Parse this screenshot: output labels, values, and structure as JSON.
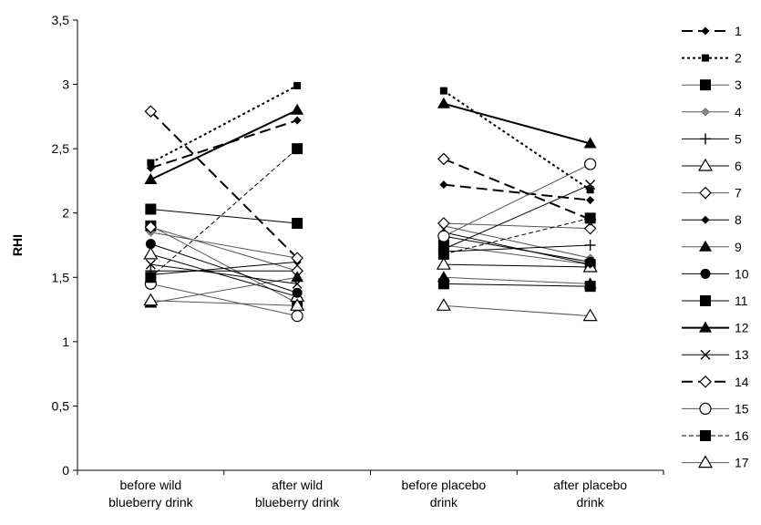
{
  "chart_data": {
    "type": "line",
    "title": "",
    "xlabel": "",
    "ylabel": "RHI",
    "ylim": [
      0,
      3.5
    ],
    "yticks": [
      "0",
      "0,5",
      "1",
      "1,5",
      "2",
      "2,5",
      "3",
      "3,5"
    ],
    "grid": false,
    "legend_position": "right",
    "categories": [
      [
        "before wild",
        "blueberry drink"
      ],
      [
        "after wild",
        "blueberry drink"
      ],
      [
        "before placebo",
        "drink"
      ],
      [
        "after placebo",
        "drink"
      ]
    ],
    "series": [
      {
        "name": "1",
        "values": [
          2.35,
          2.72,
          2.22,
          2.1
        ],
        "dash": "long",
        "marker": "diamond-filled",
        "width": 2
      },
      {
        "name": "2",
        "values": [
          2.39,
          2.99,
          2.95,
          2.18
        ],
        "dash": "dot",
        "marker": "square-filled-small",
        "width": 2
      },
      {
        "name": "3",
        "values": [
          1.9,
          1.3,
          1.75,
          1.6
        ],
        "dash": "solid",
        "marker": "square-filled",
        "width": 1
      },
      {
        "name": "4",
        "values": [
          1.85,
          1.65,
          1.9,
          1.65
        ],
        "dash": "solid",
        "marker": "diamond-grey",
        "width": 1
      },
      {
        "name": "5",
        "values": [
          1.55,
          1.55,
          1.7,
          1.75
        ],
        "dash": "solid",
        "marker": "plus",
        "width": 1
      },
      {
        "name": "6",
        "values": [
          1.68,
          1.35,
          1.6,
          1.58
        ],
        "dash": "solid",
        "marker": "triangle-open",
        "width": 1
      },
      {
        "name": "7",
        "values": [
          1.89,
          1.55,
          1.92,
          1.88
        ],
        "dash": "solid",
        "marker": "diamond-open",
        "width": 1
      },
      {
        "name": "8",
        "values": [
          1.52,
          1.62,
          1.85,
          1.6
        ],
        "dash": "solid",
        "marker": "diamond-filled",
        "width": 1
      },
      {
        "name": "9",
        "values": [
          1.3,
          1.5,
          1.5,
          1.45
        ],
        "dash": "solid",
        "marker": "triangle-filled",
        "width": 1
      },
      {
        "name": "10",
        "values": [
          1.76,
          1.38,
          1.82,
          1.62
        ],
        "dash": "solid",
        "marker": "circle-filled",
        "width": 1
      },
      {
        "name": "11",
        "values": [
          2.03,
          1.92,
          1.45,
          1.43
        ],
        "dash": "solid",
        "marker": "square-filled",
        "width": 1
      },
      {
        "name": "12",
        "values": [
          2.26,
          2.8,
          2.85,
          2.54
        ],
        "dash": "solid",
        "marker": "triangle-filled",
        "width": 2
      },
      {
        "name": "13",
        "values": [
          1.6,
          1.45,
          1.72,
          2.22
        ],
        "dash": "solid",
        "marker": "x",
        "width": 1
      },
      {
        "name": "14",
        "values": [
          2.79,
          1.65,
          2.42,
          1.95
        ],
        "dash": "long",
        "marker": "diamond-open",
        "width": 2
      },
      {
        "name": "15",
        "values": [
          1.45,
          1.2,
          1.82,
          2.38
        ],
        "dash": "solid",
        "marker": "circle-open",
        "width": 1
      },
      {
        "name": "16",
        "values": [
          1.5,
          2.5,
          1.68,
          1.96
        ],
        "dash": "dash",
        "marker": "square-filled",
        "width": 1
      },
      {
        "name": "17",
        "values": [
          1.32,
          1.28,
          1.28,
          1.2
        ],
        "dash": "solid",
        "marker": "triangle-open",
        "width": 1
      }
    ]
  }
}
